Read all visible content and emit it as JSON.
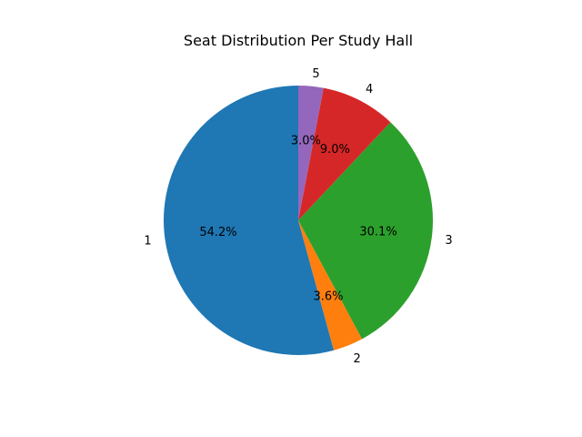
{
  "chart_data": {
    "type": "pie",
    "title": "Seat Distribution Per Study Hall",
    "categories": [
      "1",
      "2",
      "3",
      "4",
      "5"
    ],
    "values": [
      54.2,
      3.6,
      30.1,
      9.0,
      3.0
    ],
    "percent_labels": [
      "54.2%",
      "3.6%",
      "30.1%",
      "9.0%",
      "3.0%"
    ],
    "colors": [
      "#1f77b4",
      "#ff7f0e",
      "#2ca02c",
      "#d62728",
      "#9467bd"
    ],
    "start_angle_deg": 90,
    "direction": "counterclockwise",
    "legend": "none"
  }
}
